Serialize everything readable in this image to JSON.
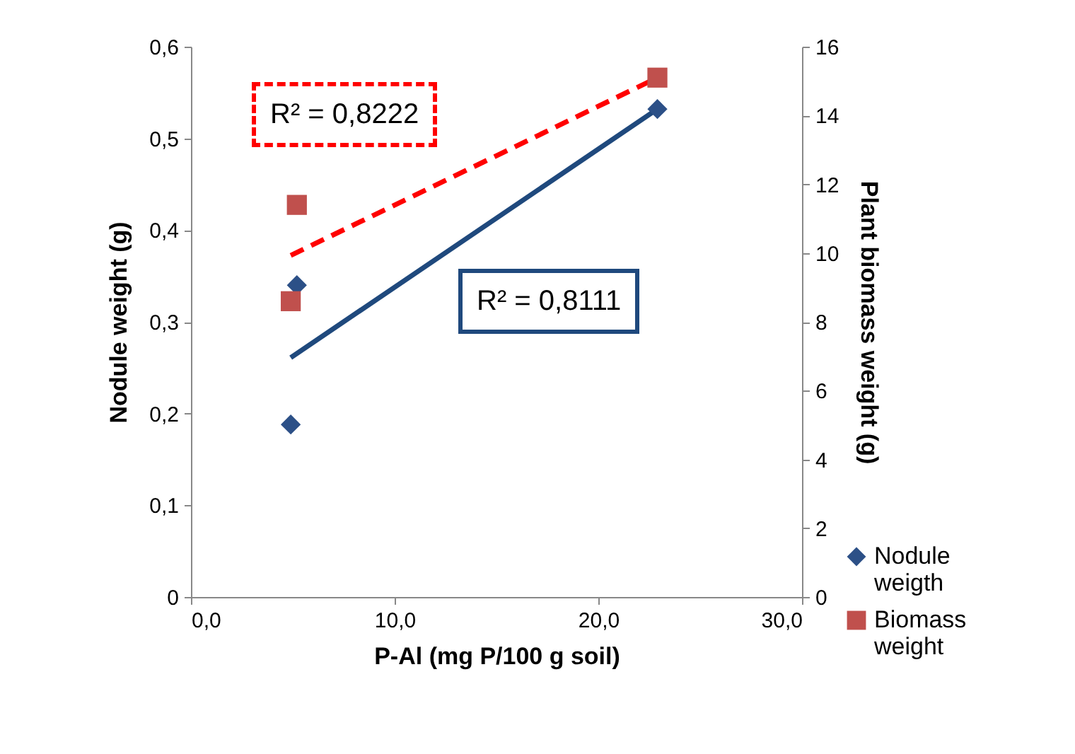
{
  "chart_data": {
    "type": "scatter",
    "xlabel": "P-Al (mg P/100 g soil)",
    "ylabel": "Nodule weight (g)",
    "y2label": "Plant biomass weight (g)",
    "xlim": [
      0,
      30
    ],
    "xticks": [
      {
        "value": 0,
        "label": "0,0"
      },
      {
        "value": 10,
        "label": "10,0"
      },
      {
        "value": 20,
        "label": "20,0"
      },
      {
        "value": 30,
        "label": "30,0"
      }
    ],
    "ylim": [
      0,
      0.6
    ],
    "yticks": [
      0,
      {
        "value": 0.1,
        "label": "0,1"
      },
      {
        "value": 0.2,
        "label": "0,2"
      },
      {
        "value": 0.3,
        "label": "0,3"
      },
      {
        "value": 0.4,
        "label": "0,4"
      },
      {
        "value": 0.5,
        "label": "0,5"
      },
      {
        "value": 0.6,
        "label": "0,6"
      }
    ],
    "y2lim": [
      0,
      16
    ],
    "y2ticks": [
      0,
      2,
      4,
      6,
      8,
      10,
      12,
      14,
      16
    ],
    "series": [
      {
        "name": "Nodule weigth",
        "marker": "diamond",
        "color": "#2c5087",
        "x": [
          4.9,
          5.2,
          22.9
        ],
        "values": [
          0.188,
          0.34,
          0.532
        ]
      },
      {
        "name": "Biomass weight",
        "marker": "square",
        "color": "#c0504d",
        "axis": "y2",
        "x": [
          4.9,
          5.2,
          22.9
        ],
        "values": [
          8.6,
          11.4,
          15.1
        ]
      },
      {
        "type": "line",
        "color": "#1f497d",
        "line_style": "solid",
        "x": [
          4.9,
          22.9
        ],
        "values": [
          0.261,
          0.532
        ]
      },
      {
        "type": "line",
        "color": "#ff0000",
        "line_style": "dashed",
        "axis": "y2",
        "x": [
          4.9,
          22.9
        ],
        "values": [
          9.93,
          15.1
        ]
      }
    ],
    "annotations": [
      "R² = 0,8222",
      "R² = 0,8111"
    ],
    "legend": "bottom right",
    "grid": false
  }
}
